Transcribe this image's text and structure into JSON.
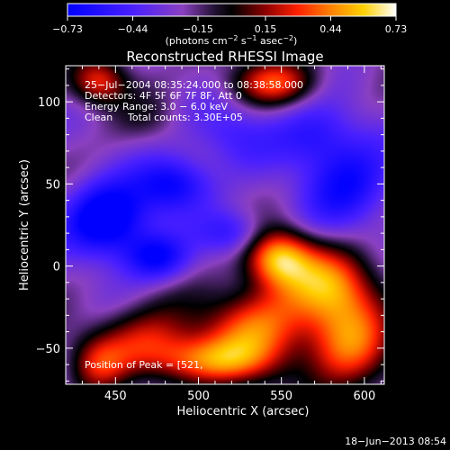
{
  "chart_data": {
    "type": "heatmap",
    "title": "Reconstructed RHESSI Image",
    "xlabel": "Heliocentric X (arcsec)",
    "ylabel": "Heliocentric Y (arcsec)",
    "xlim": [
      420,
      612
    ],
    "ylim": [
      -72,
      122
    ],
    "x_ticks": [
      {
        "value": 450,
        "label": "450"
      },
      {
        "value": 500,
        "label": "500"
      },
      {
        "value": 550,
        "label": "550"
      },
      {
        "value": 600,
        "label": "600"
      }
    ],
    "y_ticks": [
      {
        "value": -50,
        "label": "−50"
      },
      {
        "value": 0,
        "label": "0"
      },
      {
        "value": 50,
        "label": "50"
      },
      {
        "value": 100,
        "label": "100"
      }
    ],
    "colorbar": {
      "min": -0.73,
      "max": 0.73,
      "ticks": [
        {
          "value": -0.73,
          "label": "−0.73"
        },
        {
          "value": -0.44,
          "label": "−0.44"
        },
        {
          "value": -0.15,
          "label": "−0.15"
        },
        {
          "value": 0.15,
          "label": "0.15"
        },
        {
          "value": 0.44,
          "label": "0.44"
        },
        {
          "value": 0.73,
          "label": "0.73"
        }
      ],
      "unit_parts": [
        "(photons cm",
        "−2",
        " s",
        "−1",
        " asec",
        "−2",
        ")"
      ]
    },
    "annotations": [
      "25−Jul−2004 08:35:24.000 to 08:38:58.000",
      "Detectors: 4F 5F 6F 7F 8F, Att 0",
      "Energy Range: 3.0 − 6.0 keV"
    ],
    "clean_label": "Clean",
    "total_counts": "Total counts: 3.30E+05",
    "peak_label": "Position of Peak = [521,",
    "timestamp": "18−Jun−2013 08:54",
    "sources": [
      {
        "x": 548,
        "y": 5,
        "sx": 14,
        "sy": 12,
        "amp": 0.73
      },
      {
        "x": 578,
        "y": -10,
        "sx": 20,
        "sy": 16,
        "amp": 0.55
      },
      {
        "x": 535,
        "y": -38,
        "sx": 22,
        "sy": 18,
        "amp": 0.6
      },
      {
        "x": 590,
        "y": -45,
        "sx": 18,
        "sy": 22,
        "amp": 0.6
      },
      {
        "x": 505,
        "y": -58,
        "sx": 26,
        "sy": 10,
        "amp": 0.5
      },
      {
        "x": 470,
        "y": -45,
        "sx": 22,
        "sy": 14,
        "amp": 0.42
      },
      {
        "x": 440,
        "y": -60,
        "sx": 12,
        "sy": 12,
        "amp": 0.35
      },
      {
        "x": 440,
        "y": 112,
        "sx": 12,
        "sy": 10,
        "amp": 0.5
      },
      {
        "x": 545,
        "y": 112,
        "sx": 18,
        "sy": 10,
        "amp": 0.5
      },
      {
        "x": 470,
        "y": 90,
        "sx": 14,
        "sy": 10,
        "amp": 0.1
      },
      {
        "x": 445,
        "y": 28,
        "sx": 18,
        "sy": 16,
        "amp": -0.7
      },
      {
        "x": 485,
        "y": 50,
        "sx": 16,
        "sy": 12,
        "amp": -0.5
      },
      {
        "x": 475,
        "y": 5,
        "sx": 14,
        "sy": 10,
        "amp": -0.45
      },
      {
        "x": 520,
        "y": 20,
        "sx": 14,
        "sy": 10,
        "amp": -0.35
      },
      {
        "x": 590,
        "y": 50,
        "sx": 20,
        "sy": 20,
        "amp": -0.45
      },
      {
        "x": 570,
        "y": 80,
        "sx": 18,
        "sy": 14,
        "amp": -0.3
      },
      {
        "x": 520,
        "y": 80,
        "sx": 18,
        "sy": 14,
        "amp": -0.25
      }
    ],
    "background": -0.22
  }
}
